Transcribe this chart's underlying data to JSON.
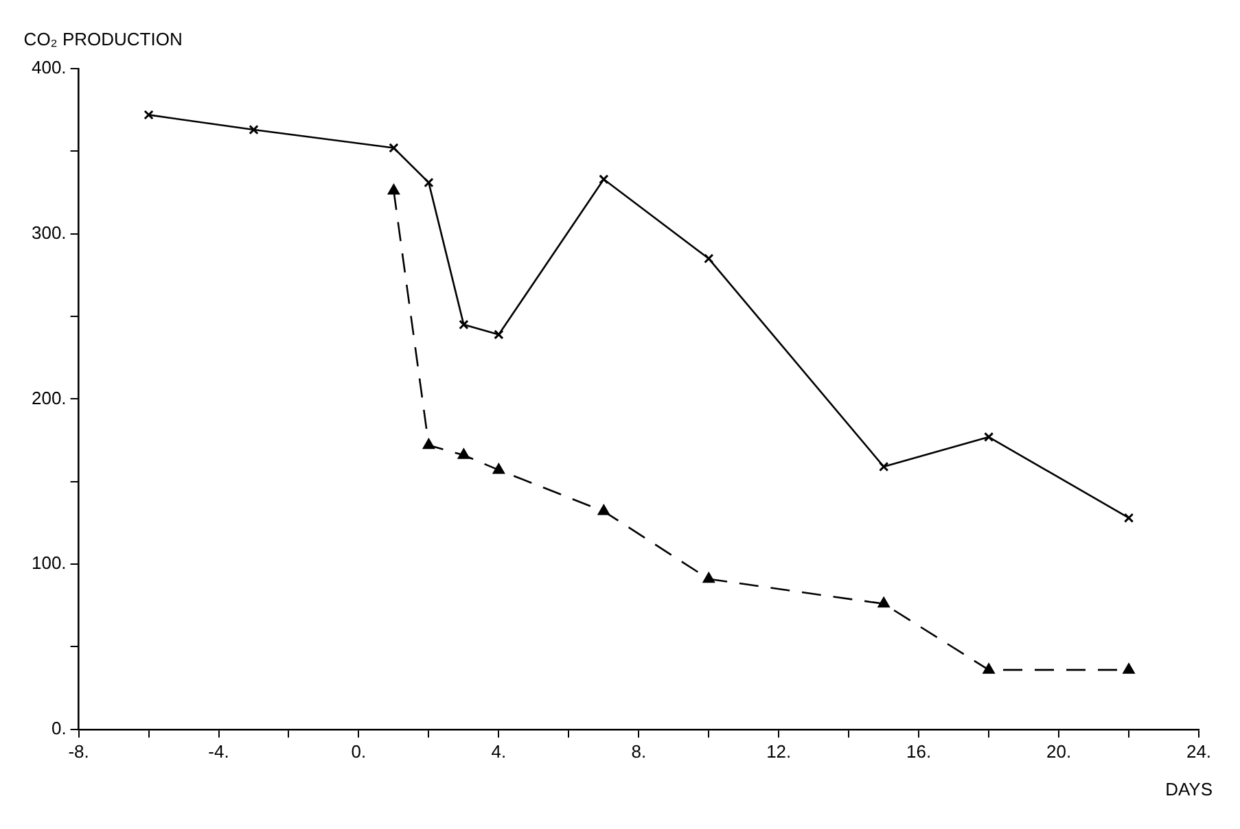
{
  "chart_data": {
    "type": "line",
    "xlabel": "DAYS",
    "ylabel": "CO₂ PRODUCTION",
    "xlim": [
      -8,
      24
    ],
    "ylim": [
      0,
      400
    ],
    "xticks": [
      {
        "value": -8,
        "label": "-8."
      },
      {
        "value": -6,
        "label": null
      },
      {
        "value": -4,
        "label": "-4."
      },
      {
        "value": -2,
        "label": null
      },
      {
        "value": 0,
        "label": "0."
      },
      {
        "value": 2,
        "label": null
      },
      {
        "value": 4,
        "label": "4."
      },
      {
        "value": 6,
        "label": null
      },
      {
        "value": 8,
        "label": "8."
      },
      {
        "value": 10,
        "label": null
      },
      {
        "value": 12,
        "label": "12."
      },
      {
        "value": 14,
        "label": null
      },
      {
        "value": 16,
        "label": "16."
      },
      {
        "value": 18,
        "label": null
      },
      {
        "value": 20,
        "label": "20."
      },
      {
        "value": 22,
        "label": null
      },
      {
        "value": 24,
        "label": "24."
      }
    ],
    "yticks": [
      {
        "value": 0,
        "label": "0."
      },
      {
        "value": 50,
        "label": null
      },
      {
        "value": 100,
        "label": "100."
      },
      {
        "value": 150,
        "label": null
      },
      {
        "value": 200,
        "label": "200."
      },
      {
        "value": 250,
        "label": null
      },
      {
        "value": 300,
        "label": "300."
      },
      {
        "value": 350,
        "label": null
      },
      {
        "value": 400,
        "label": "400."
      }
    ],
    "grid": false,
    "legend": false,
    "series": [
      {
        "color": "#000000",
        "marker": "cross",
        "line_style": "solid",
        "x": [
          -6,
          -3,
          1,
          2,
          3,
          4,
          7,
          10,
          15,
          18,
          22
        ],
        "values": [
          372,
          363,
          352,
          331,
          245,
          239,
          333,
          285,
          159,
          177,
          128
        ]
      },
      {
        "color": "#000000",
        "marker": "triangle",
        "line_style": "dashed",
        "x": [
          1,
          2,
          3,
          4,
          7,
          10,
          15,
          18,
          22
        ],
        "values": [
          326,
          172,
          166,
          157,
          132,
          91,
          76,
          36,
          36
        ]
      }
    ]
  }
}
